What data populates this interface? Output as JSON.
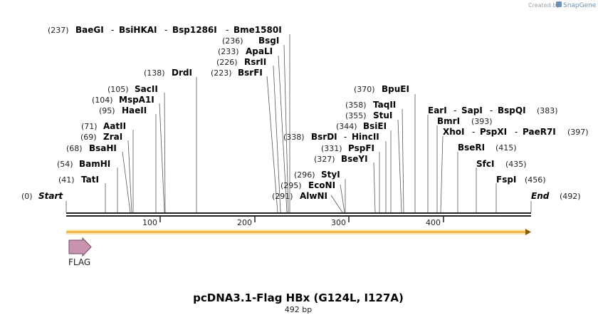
{
  "branding": {
    "created_by": "Created by",
    "product": "SnapGene"
  },
  "map": {
    "title": "pcDNA3.1-Flag HBx (G124L, I127A)",
    "length_label": "492 bp",
    "length": 492,
    "start_label": "Start",
    "start_pos": "(0)",
    "end_label": "End",
    "end_pos": "(492)",
    "ticks": [
      "100",
      "200",
      "300",
      "400"
    ],
    "feature": {
      "name": "FLAG",
      "color": "#c994b0"
    },
    "orf_color": "#f0b030",
    "sites": [
      {
        "pos": "(237)",
        "names": [
          "BaeGI",
          "BsiHKAI",
          "Bsp1286I",
          "Bme1580I"
        ]
      },
      {
        "pos": "(236)",
        "names": [
          "BsgI"
        ]
      },
      {
        "pos": "(233)",
        "names": [
          "ApaLI"
        ]
      },
      {
        "pos": "(226)",
        "names": [
          "RsrII"
        ]
      },
      {
        "pos": "(223)",
        "names": [
          "BsrFI"
        ]
      },
      {
        "pos": "(138)",
        "names": [
          "DrdI"
        ]
      },
      {
        "pos": "(105)",
        "names": [
          "SacII"
        ]
      },
      {
        "pos": "(104)",
        "names": [
          "MspA1I"
        ]
      },
      {
        "pos": "(95)",
        "names": [
          "HaeII"
        ]
      },
      {
        "pos": "(71)",
        "names": [
          "AatII"
        ]
      },
      {
        "pos": "(69)",
        "names": [
          "ZraI"
        ]
      },
      {
        "pos": "(68)",
        "names": [
          "BsaHI"
        ]
      },
      {
        "pos": "(54)",
        "names": [
          "BamHI"
        ]
      },
      {
        "pos": "(41)",
        "names": [
          "TatI"
        ]
      },
      {
        "pos": "(370)",
        "names": [
          "BpuEI"
        ]
      },
      {
        "pos": "(358)",
        "names": [
          "TaqII"
        ]
      },
      {
        "pos": "(355)",
        "names": [
          "StuI"
        ]
      },
      {
        "pos": "(344)",
        "names": [
          "BsiEI"
        ]
      },
      {
        "pos": "(338)",
        "names": [
          "BsrDI",
          "HincII"
        ]
      },
      {
        "pos": "(331)",
        "names": [
          "PspFI"
        ]
      },
      {
        "pos": "(327)",
        "names": [
          "BseYI"
        ]
      },
      {
        "pos": "(296)",
        "names": [
          "StyI"
        ]
      },
      {
        "pos": "(295)",
        "names": [
          "EcoNI"
        ]
      },
      {
        "pos": "(291)",
        "names": [
          "AlwNI"
        ]
      },
      {
        "pos": "(383)",
        "names": [
          "EarI",
          "SapI",
          "BspQI"
        ]
      },
      {
        "pos": "(393)",
        "names": [
          "BmrI"
        ]
      },
      {
        "pos": "(397)",
        "names": [
          "XhoI",
          "PspXI",
          "PaeR7I"
        ]
      },
      {
        "pos": "(415)",
        "names": [
          "BseRI"
        ]
      },
      {
        "pos": "(435)",
        "names": [
          "SfcI"
        ]
      },
      {
        "pos": "(456)",
        "names": [
          "FspI"
        ]
      }
    ]
  }
}
